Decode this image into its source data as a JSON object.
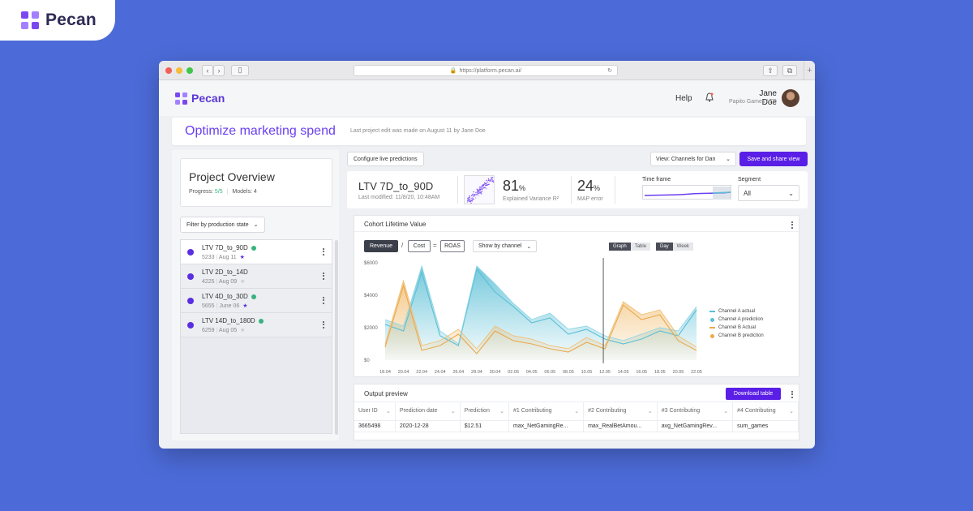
{
  "brand": {
    "name": "Pecan"
  },
  "browser": {
    "url": "https://platform.pecan.ai/"
  },
  "header": {
    "help": "Help",
    "user_name": "Jane Doe",
    "user_company": "Papito Games LTD"
  },
  "page": {
    "title": "Optimize marketing spend",
    "last_edit": "Last project edit was made on August 11 by Jane Doe"
  },
  "overview": {
    "title": "Project Overview",
    "progress_label": "Progress:",
    "progress_value": "5/5",
    "models_label": "Models: 4"
  },
  "filter": {
    "label": "Filter by production state"
  },
  "models": [
    {
      "name": "LTV 7D_to_90D",
      "count": "5233",
      "date": "Aug 11",
      "active": true,
      "starred": true
    },
    {
      "name": "LTV 2D_to_14D",
      "count": "4225",
      "date": "Aug 09",
      "active": false,
      "starred": false
    },
    {
      "name": "LTV 4D_to_30D",
      "count": "5655",
      "date": "June 06",
      "active": true,
      "starred": true
    },
    {
      "name": "LTV 14D_to_180D",
      "count": "6259",
      "date": "Aug 05",
      "active": true,
      "starred": false
    }
  ],
  "toolbar": {
    "configure": "Configure live predictions",
    "view": "View: Channels for Dan",
    "save": "Save and share view"
  },
  "model_card": {
    "title": "LTV 7D_to_90D",
    "modified": "Last modified: 11/8/20, 10:48AM",
    "metric1_value": "81",
    "metric1_unit": "%",
    "metric1_label": "Explained Variance R²",
    "metric2_value": "24",
    "metric2_unit": "%",
    "metric2_label": "MAP error",
    "timeframe_label": "Time frame",
    "segment_label": "Segment",
    "segment_value": "All"
  },
  "cohort": {
    "title": "Cohort Lifetime Value",
    "revenue": "Revenue",
    "slash": "/",
    "cost": "Cost",
    "equals": "=",
    "roas": "ROAS",
    "show_by": "Show by channel",
    "toggle1": [
      "Graph",
      "Table"
    ],
    "toggle2": [
      "Day",
      "Week"
    ]
  },
  "chart_data": {
    "type": "area",
    "x": [
      "18.04",
      "20.04",
      "22.04",
      "24.04",
      "26.04",
      "28.04",
      "30.04",
      "02.05",
      "04.05",
      "06.05",
      "08.05",
      "10.05",
      "12.05",
      "14.05",
      "16.05",
      "18.05",
      "20.05",
      "22.05"
    ],
    "yticks": [
      "$0",
      "$2000",
      "$4000",
      "$6000"
    ],
    "ylim": [
      0,
      6000
    ],
    "series": [
      {
        "name": "Channel A actual",
        "color": "#5bbfd6",
        "values": [
          2200,
          1800,
          5400,
          1500,
          900,
          5600,
          4200,
          3300,
          2300,
          2600,
          1600,
          1900,
          1300,
          1000,
          1300,
          1800,
          1500,
          3100
        ]
      },
      {
        "name": "Channel A prediction",
        "color": "#8fd6e6",
        "values": [
          2500,
          2100,
          5800,
          1800,
          1000,
          5800,
          4700,
          3500,
          2500,
          2900,
          1900,
          2100,
          1500,
          1200,
          1600,
          2000,
          1800,
          3300
        ]
      },
      {
        "name": "Channel B Actual",
        "color": "#e9a94c",
        "values": [
          800,
          4600,
          600,
          900,
          1600,
          400,
          1800,
          1200,
          1000,
          700,
          500,
          1100,
          700,
          3400,
          2500,
          2800,
          1200,
          600
        ]
      },
      {
        "name": "Channel B prediction",
        "color": "#f0bf76",
        "values": [
          1000,
          4900,
          900,
          1200,
          1900,
          700,
          2100,
          1500,
          1300,
          900,
          700,
          1400,
          900,
          3600,
          2800,
          3100,
          1500,
          800
        ]
      }
    ]
  },
  "output": {
    "title": "Output preview",
    "download": "Download table",
    "columns": [
      "User ID",
      "Prediction date",
      "Prediction",
      "#1 Contributing",
      "#2 Contributing",
      "#3 Contributing",
      "#4 Contributing"
    ],
    "rows": [
      [
        "3665498",
        "2020-12-28",
        "$12.51",
        "max_NetGamingRe...",
        "max_RealBetAmou...",
        "avg_NetGamingRev...",
        "sum_games"
      ]
    ]
  },
  "colors": {
    "accent": "#5a1fe6",
    "title_purple": "#6a3ff0",
    "background": "#4c6bd8"
  }
}
